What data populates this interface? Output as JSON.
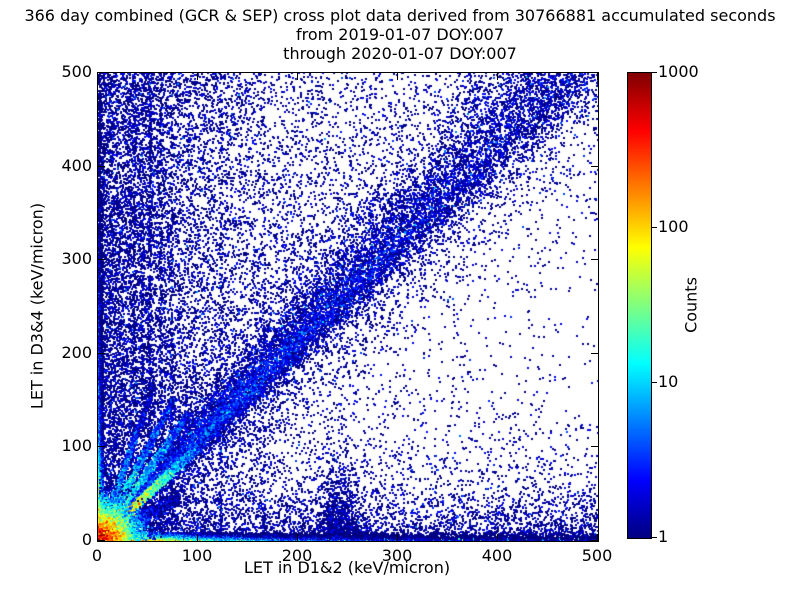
{
  "chart_data": {
    "type": "heatmap",
    "title": "366 day combined (GCR & SEP) cross plot data derived from 30766881 accumulated seconds",
    "subtitle_from": "from 2019-01-07 DOY:007",
    "subtitle_through": "through 2020-01-07 DOY:007",
    "xlabel": "LET in D1&2 (keV/micron)",
    "ylabel": "LET in D3&4 (keV/micron)",
    "xlim": [
      0,
      500
    ],
    "ylim": [
      0,
      500
    ],
    "xticks": [
      0,
      100,
      200,
      300,
      400,
      500
    ],
    "yticks": [
      0,
      100,
      200,
      300,
      400,
      500
    ],
    "grid": false,
    "duration_days": 366,
    "accumulated_seconds": 30766881,
    "colorbar": {
      "label": "Counts",
      "scale": "log",
      "range": [
        1,
        1000
      ],
      "ticks": [
        1000,
        100,
        10,
        1
      ],
      "colormap": "jet",
      "colormap_stops": [
        {
          "pos": 0.0,
          "color": "#000080"
        },
        {
          "pos": 0.125,
          "color": "#0000ff"
        },
        {
          "pos": 0.375,
          "color": "#00ffff"
        },
        {
          "pos": 0.625,
          "color": "#ffff00"
        },
        {
          "pos": 0.875,
          "color": "#ff0000"
        },
        {
          "pos": 1.0,
          "color": "#800000"
        }
      ]
    },
    "density_features": {
      "seed": 42,
      "background": {
        "left_exp_n": 15000,
        "left_exp_scale": 85,
        "uniform_n": 5200,
        "upper_keep": 1.0,
        "lower_keep": 0.32,
        "bottom_exp_n": 4200,
        "bottom_exp_scale": 30,
        "x_pow": 0.75
      },
      "vertical_stripes": [
        {
          "x": 35,
          "n": 300
        },
        {
          "x": 44,
          "n": 260
        },
        {
          "x": 51,
          "n": 480
        },
        {
          "x": 62,
          "n": 260
        },
        {
          "x": 73,
          "n": 220
        },
        {
          "x": 122,
          "n": 200
        },
        {
          "x": 165,
          "n": 150
        }
      ],
      "plume_240": {
        "x": 240,
        "sigma": 10,
        "y_decay": 26,
        "n": 1200
      },
      "main_band": {
        "slope": 1.06,
        "length": 500,
        "n": 15000,
        "sigma_up_base": 6,
        "sigma_up_growth": 0.1,
        "sigma_down_base": 3,
        "sigma_down_growth": 0.05,
        "halo_n": 5200,
        "halo_scale": 3.2
      },
      "bottom_band": {
        "thickness": 8,
        "peak_count": 650,
        "decay_fast": 24,
        "mid_count": 22,
        "decay_mid": 95,
        "base_count": 2.6,
        "decay_slow": 420,
        "y_decay": 2.3,
        "cyan_spike_prob": 0.05
      },
      "left_column": {
        "thickness": 5,
        "peak_count": 380,
        "decay_fast": 19,
        "mid_count": 18,
        "decay_mid": 85,
        "base_count": 1.8,
        "decay_slow": 320,
        "x_decay": 1.9
      },
      "diagonal_streaks": [
        {
          "slope": 1.0,
          "peak_count": 420,
          "decay_length": 20,
          "width": 2.0,
          "max_x": 100,
          "n": 5200
        },
        {
          "slope": 1.5,
          "peak_count": 40,
          "decay_length": 30,
          "width": 2.4,
          "max_x": 90,
          "n": 2200
        },
        {
          "slope": 2.0,
          "peak_count": 28,
          "decay_length": 26,
          "width": 2.6,
          "max_x": 75,
          "n": 1900
        },
        {
          "slope": 3.0,
          "peak_count": 16,
          "decay_length": 20,
          "width": 2.8,
          "max_x": 55,
          "n": 1500
        },
        {
          "slope": 0.55,
          "peak_count": 9,
          "decay_length": 35,
          "width": 3.0,
          "max_x": 80,
          "n": 1100
        }
      ],
      "diagonal_knot": {
        "x": 25,
        "y": 25,
        "sigma": 3.5,
        "count": 180,
        "n": 700
      },
      "origin_hotspot": {
        "peak_count": 900,
        "radial_decay": 9,
        "spread": 13,
        "n": 8000
      }
    }
  }
}
